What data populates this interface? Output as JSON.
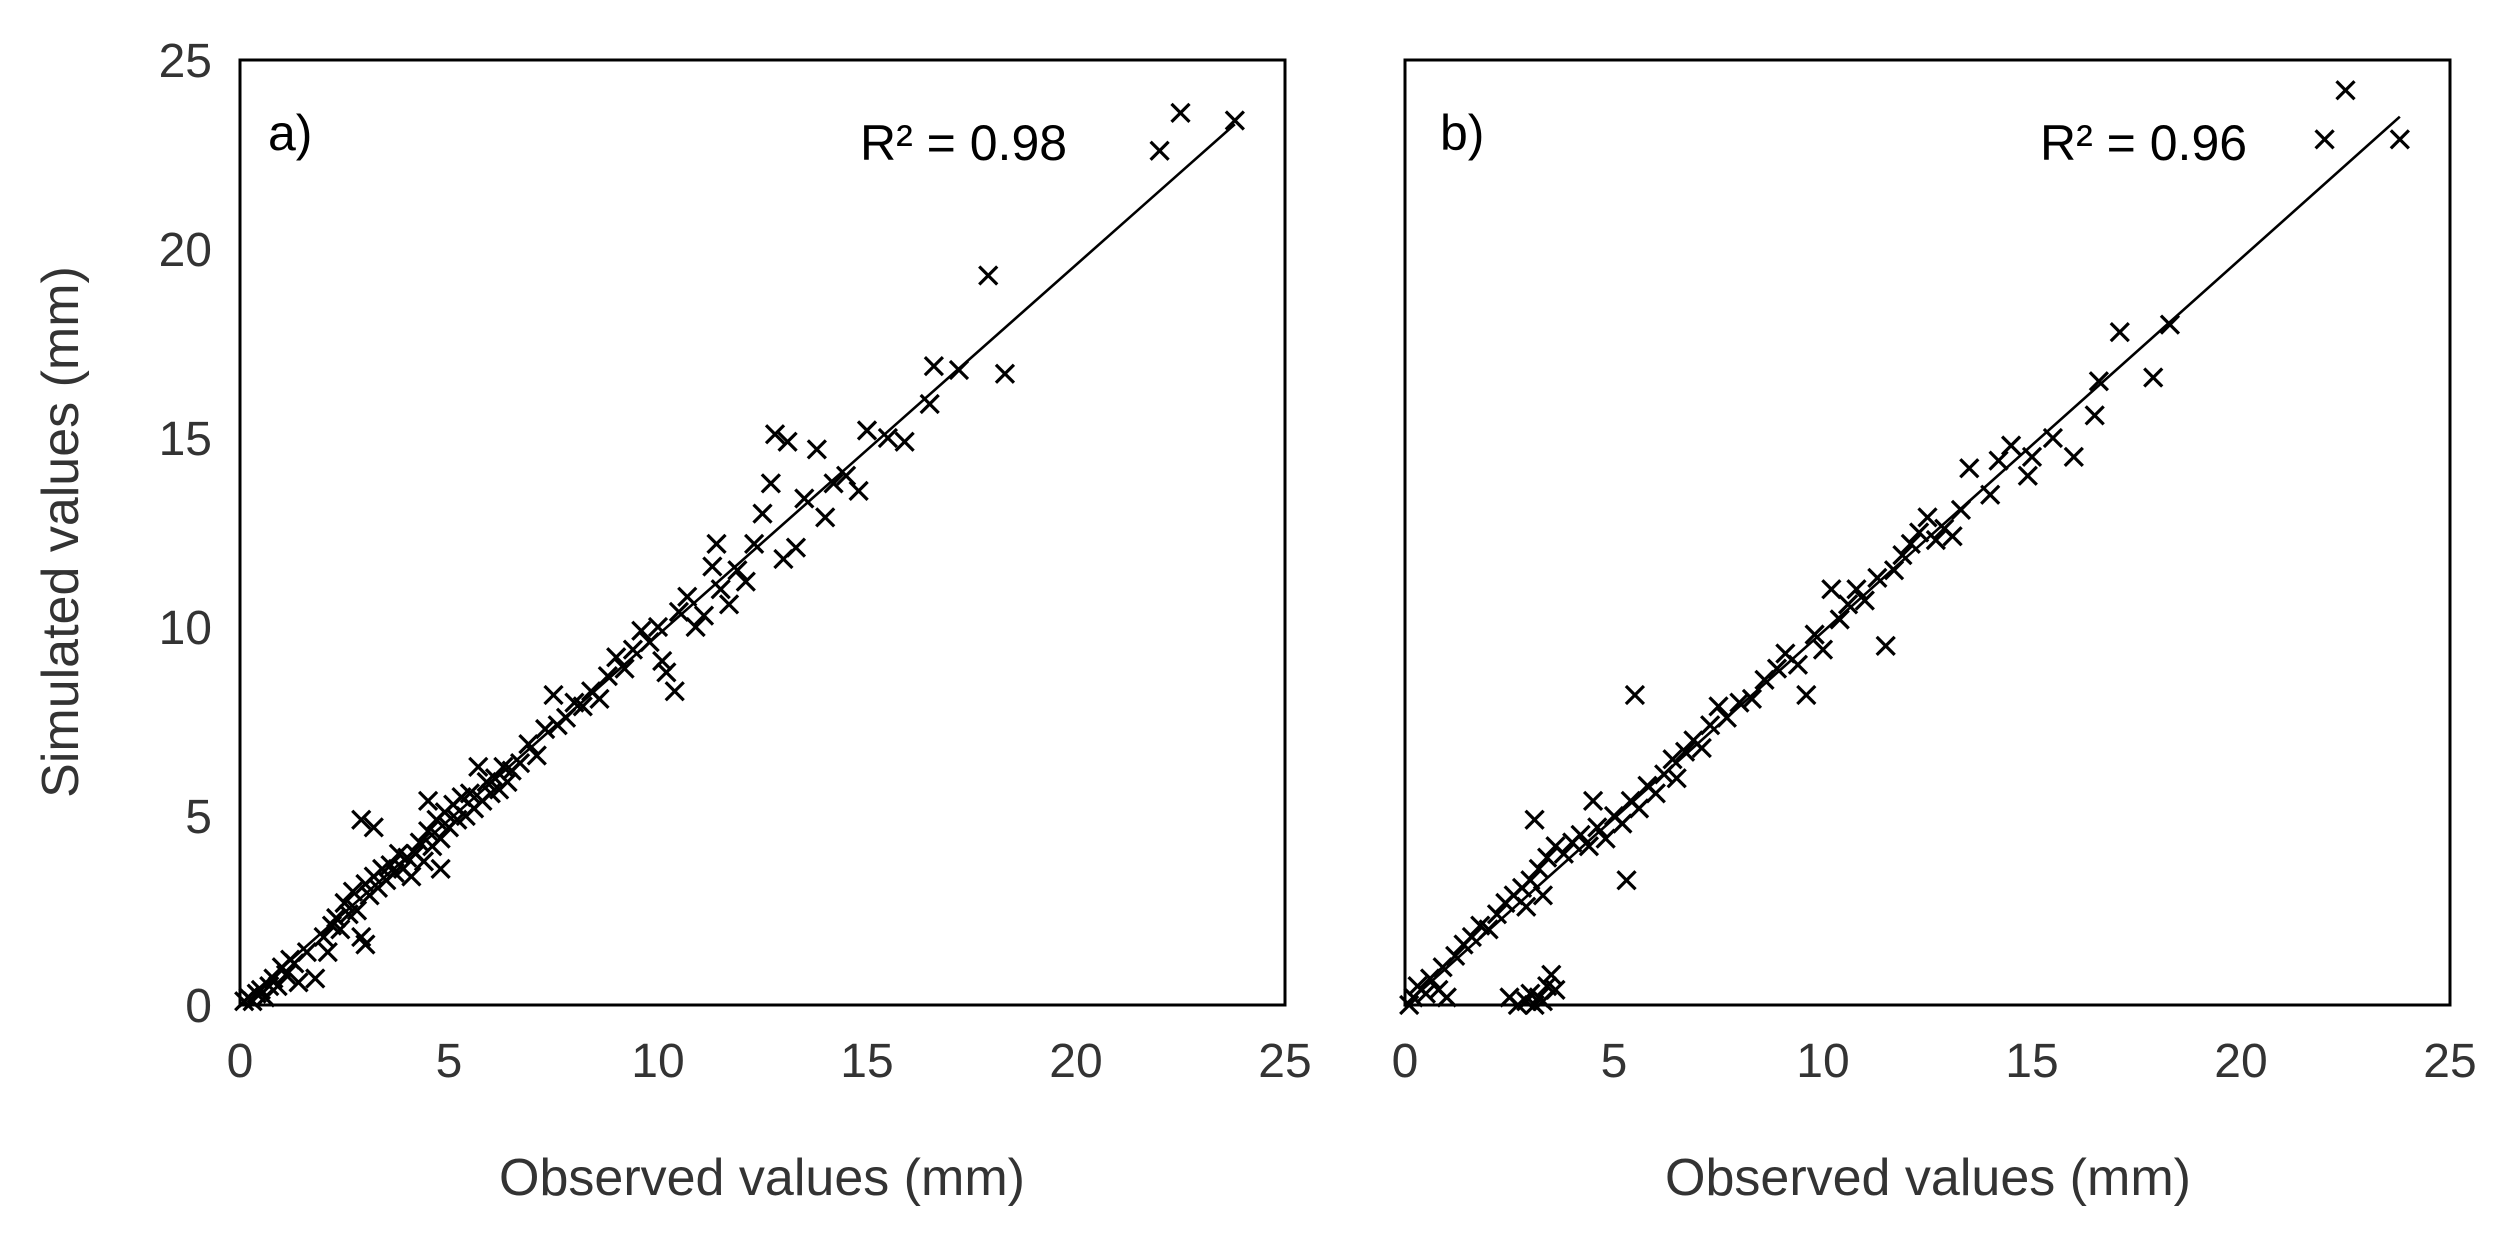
{
  "chart_data": [
    {
      "type": "scatter",
      "panel_label": "a)",
      "annotation": "R² = 0.98",
      "xlabel": "Observed values (mm)",
      "ylabel": "Simulated values (mm)",
      "xlim": [
        0,
        25
      ],
      "ylim": [
        0,
        25
      ],
      "xticks": [
        "0",
        "5",
        "10",
        "15",
        "20",
        "25"
      ],
      "yticks": [
        "0",
        "5",
        "10",
        "15",
        "20",
        "25"
      ],
      "trendline": {
        "x": [
          0,
          23.8
        ],
        "y": [
          0,
          23.3
        ]
      },
      "points": [
        [
          0.1,
          0.1
        ],
        [
          0.2,
          0.2
        ],
        [
          0.3,
          0.1
        ],
        [
          0.4,
          0.3
        ],
        [
          0.5,
          0.4
        ],
        [
          0.6,
          0.2
        ],
        [
          0.7,
          0.5
        ],
        [
          0.8,
          0.7
        ],
        [
          0.9,
          0.5
        ],
        [
          1.0,
          1.0
        ],
        [
          1.1,
          0.8
        ],
        [
          1.2,
          1.2
        ],
        [
          1.3,
          1.1
        ],
        [
          1.4,
          0.6
        ],
        [
          1.6,
          1.4
        ],
        [
          1.8,
          0.7
        ],
        [
          2.0,
          1.8
        ],
        [
          2.1,
          1.4
        ],
        [
          2.2,
          2.1
        ],
        [
          2.3,
          2.3
        ],
        [
          2.4,
          2.0
        ],
        [
          2.5,
          2.7
        ],
        [
          2.6,
          2.4
        ],
        [
          2.7,
          3.0
        ],
        [
          2.8,
          2.5
        ],
        [
          2.9,
          1.8
        ],
        [
          3.0,
          1.6
        ],
        [
          3.0,
          3.2
        ],
        [
          3.1,
          2.9
        ],
        [
          3.2,
          3.4
        ],
        [
          3.3,
          3.1
        ],
        [
          3.4,
          3.6
        ],
        [
          3.5,
          3.3
        ],
        [
          3.6,
          3.7
        ],
        [
          3.7,
          3.5
        ],
        [
          3.8,
          4.0
        ],
        [
          3.9,
          3.6
        ],
        [
          4.0,
          3.9
        ],
        [
          4.1,
          3.4
        ],
        [
          2.9,
          4.9
        ],
        [
          3.2,
          4.7
        ],
        [
          4.2,
          4.0
        ],
        [
          4.3,
          4.3
        ],
        [
          4.4,
          3.8
        ],
        [
          4.5,
          4.6
        ],
        [
          4.6,
          4.2
        ],
        [
          4.7,
          4.9
        ],
        [
          4.8,
          4.4
        ],
        [
          4.9,
          5.1
        ],
        [
          5.0,
          4.7
        ],
        [
          5.1,
          5.3
        ],
        [
          5.2,
          4.9
        ],
        [
          5.3,
          5.5
        ],
        [
          5.4,
          5.0
        ],
        [
          5.5,
          5.6
        ],
        [
          5.6,
          5.2
        ],
        [
          5.7,
          6.3
        ],
        [
          5.8,
          5.4
        ],
        [
          5.9,
          5.9
        ],
        [
          6.0,
          5.6
        ],
        [
          6.1,
          6.0
        ],
        [
          6.2,
          5.7
        ],
        [
          6.3,
          6.3
        ],
        [
          6.4,
          5.9
        ],
        [
          6.5,
          6.2
        ],
        [
          4.5,
          5.4
        ],
        [
          4.8,
          3.6
        ],
        [
          6.7,
          6.4
        ],
        [
          6.9,
          6.9
        ],
        [
          7.1,
          6.6
        ],
        [
          7.3,
          7.3
        ],
        [
          7.5,
          8.2
        ],
        [
          7.6,
          7.4
        ],
        [
          7.8,
          7.6
        ],
        [
          8.0,
          8.0
        ],
        [
          8.2,
          7.9
        ],
        [
          8.4,
          8.3
        ],
        [
          8.6,
          8.1
        ],
        [
          8.8,
          8.7
        ],
        [
          9.0,
          9.2
        ],
        [
          9.2,
          8.9
        ],
        [
          9.4,
          9.4
        ],
        [
          9.6,
          9.9
        ],
        [
          9.8,
          9.6
        ],
        [
          10.0,
          10.0
        ],
        [
          10.1,
          9.1
        ],
        [
          10.2,
          8.8
        ],
        [
          10.4,
          8.3
        ],
        [
          10.5,
          10.4
        ],
        [
          10.7,
          10.8
        ],
        [
          10.9,
          10.0
        ],
        [
          11.1,
          10.3
        ],
        [
          11.3,
          11.6
        ],
        [
          11.4,
          12.2
        ],
        [
          11.5,
          11.0
        ],
        [
          11.7,
          10.6
        ],
        [
          11.9,
          11.5
        ],
        [
          12.1,
          11.2
        ],
        [
          12.3,
          12.2
        ],
        [
          12.5,
          13.0
        ],
        [
          12.7,
          13.8
        ],
        [
          12.8,
          15.1
        ],
        [
          13.0,
          11.8
        ],
        [
          13.1,
          14.9
        ],
        [
          13.3,
          12.1
        ],
        [
          13.5,
          13.4
        ],
        [
          13.8,
          14.7
        ],
        [
          14.0,
          12.9
        ],
        [
          14.2,
          13.8
        ],
        [
          14.5,
          14.0
        ],
        [
          14.8,
          13.6
        ],
        [
          15.0,
          15.2
        ],
        [
          15.5,
          15.0
        ],
        [
          15.9,
          14.9
        ],
        [
          16.5,
          15.9
        ],
        [
          16.6,
          16.9
        ],
        [
          17.2,
          16.8
        ],
        [
          17.9,
          19.3
        ],
        [
          18.3,
          16.7
        ],
        [
          22.0,
          22.6
        ],
        [
          22.5,
          23.6
        ],
        [
          23.8,
          23.4
        ]
      ]
    },
    {
      "type": "scatter",
      "panel_label": "b)",
      "annotation": "R² = 0.96",
      "xlabel": "Observed values (mm)",
      "ylabel": "",
      "xlim": [
        0,
        25
      ],
      "ylim": [
        0,
        25
      ],
      "xticks": [
        "0",
        "5",
        "10",
        "15",
        "20",
        "25"
      ],
      "yticks": [],
      "trendline": {
        "x": [
          0,
          23.8
        ],
        "y": [
          0,
          23.5
        ]
      },
      "points": [
        [
          0.1,
          0.0
        ],
        [
          0.2,
          0.2
        ],
        [
          0.3,
          0.5
        ],
        [
          0.5,
          0.3
        ],
        [
          0.6,
          0.7
        ],
        [
          0.8,
          0.4
        ],
        [
          0.9,
          1.0
        ],
        [
          1.0,
          0.2
        ],
        [
          1.2,
          1.3
        ],
        [
          1.4,
          1.6
        ],
        [
          1.6,
          1.8
        ],
        [
          1.8,
          2.1
        ],
        [
          2.0,
          2.0
        ],
        [
          2.2,
          2.4
        ],
        [
          2.4,
          2.7
        ],
        [
          2.6,
          2.9
        ],
        [
          2.8,
          3.1
        ],
        [
          3.0,
          3.3
        ],
        [
          3.2,
          3.6
        ],
        [
          3.4,
          3.9
        ],
        [
          3.6,
          4.2
        ],
        [
          3.1,
          4.9
        ],
        [
          2.9,
          2.6
        ],
        [
          3.3,
          2.9
        ],
        [
          2.5,
          0.2
        ],
        [
          2.7,
          0.0
        ],
        [
          2.9,
          0.1
        ],
        [
          3.0,
          0.3
        ],
        [
          3.1,
          0.0
        ],
        [
          3.2,
          0.2
        ],
        [
          3.3,
          0.1
        ],
        [
          3.4,
          0.5
        ],
        [
          3.5,
          0.8
        ],
        [
          3.6,
          0.4
        ],
        [
          3.8,
          4.0
        ],
        [
          4.0,
          4.3
        ],
        [
          4.2,
          4.5
        ],
        [
          4.4,
          4.2
        ],
        [
          4.5,
          5.4
        ],
        [
          4.6,
          4.7
        ],
        [
          4.8,
          4.4
        ],
        [
          5.0,
          5.0
        ],
        [
          5.2,
          4.8
        ],
        [
          5.3,
          3.3
        ],
        [
          5.4,
          5.4
        ],
        [
          5.5,
          8.2
        ],
        [
          5.6,
          5.2
        ],
        [
          5.8,
          5.8
        ],
        [
          6.0,
          5.6
        ],
        [
          6.2,
          6.1
        ],
        [
          6.4,
          6.5
        ],
        [
          6.5,
          6.0
        ],
        [
          6.7,
          6.7
        ],
        [
          6.9,
          7.0
        ],
        [
          7.1,
          6.8
        ],
        [
          7.3,
          7.4
        ],
        [
          7.5,
          7.9
        ],
        [
          7.7,
          7.6
        ],
        [
          8.0,
          8.0
        ],
        [
          8.3,
          8.1
        ],
        [
          8.6,
          8.6
        ],
        [
          8.9,
          8.9
        ],
        [
          9.1,
          9.3
        ],
        [
          9.4,
          9.0
        ],
        [
          9.6,
          8.2
        ],
        [
          9.8,
          9.8
        ],
        [
          10.0,
          9.4
        ],
        [
          10.2,
          11.0
        ],
        [
          10.4,
          10.2
        ],
        [
          10.6,
          10.6
        ],
        [
          10.8,
          11.0
        ],
        [
          11.0,
          10.7
        ],
        [
          11.3,
          11.3
        ],
        [
          11.5,
          9.5
        ],
        [
          11.7,
          11.5
        ],
        [
          11.9,
          11.9
        ],
        [
          12.1,
          12.2
        ],
        [
          12.3,
          12.5
        ],
        [
          12.5,
          12.9
        ],
        [
          12.7,
          12.3
        ],
        [
          12.9,
          12.6
        ],
        [
          13.1,
          12.4
        ],
        [
          13.3,
          13.1
        ],
        [
          13.5,
          14.2
        ],
        [
          14.0,
          13.5
        ],
        [
          14.2,
          14.4
        ],
        [
          14.5,
          14.8
        ],
        [
          14.9,
          14.0
        ],
        [
          15.0,
          14.5
        ],
        [
          15.5,
          15.0
        ],
        [
          16.0,
          14.5
        ],
        [
          16.5,
          15.6
        ],
        [
          16.6,
          16.5
        ],
        [
          17.1,
          17.8
        ],
        [
          17.9,
          16.6
        ],
        [
          18.3,
          18.0
        ],
        [
          22.0,
          22.9
        ],
        [
          22.5,
          24.2
        ],
        [
          23.8,
          22.9
        ]
      ]
    }
  ]
}
